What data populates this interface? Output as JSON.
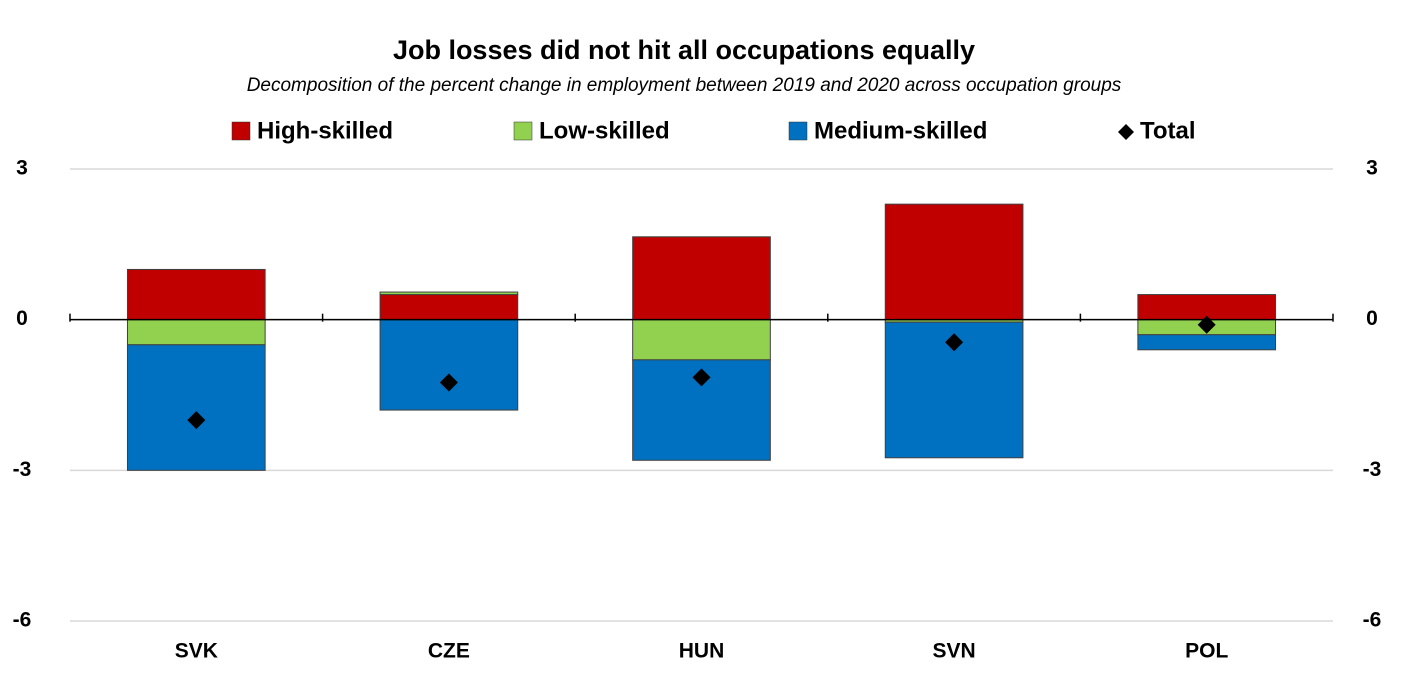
{
  "chart_data": {
    "type": "stacked_bar",
    "title": "Job losses did not hit all occupations equally",
    "subtitle": "Decomposition of the percent change in employment between 2019 and 2020 across occupation groups",
    "categories": [
      "SVK",
      "CZE",
      "HUN",
      "SVN",
      "POL"
    ],
    "series": [
      {
        "name": "High-skilled",
        "color": "#c00000",
        "values": [
          1.0,
          0.5,
          1.65,
          2.3,
          0.5
        ]
      },
      {
        "name": "Low-skilled",
        "color": "#92d050",
        "values": [
          -0.5,
          0.05,
          -0.8,
          -0.05,
          -0.3
        ]
      },
      {
        "name": "Medium-skilled",
        "color": "#0070c0",
        "values": [
          -2.5,
          -1.8,
          -2.0,
          -2.7,
          -0.3
        ]
      }
    ],
    "total": {
      "name": "Total",
      "color": "#000000",
      "values": [
        -2.0,
        -1.25,
        -1.15,
        -0.45,
        -0.1
      ]
    },
    "ylim": [
      -6,
      3
    ],
    "yticks": [
      -6,
      -3,
      0,
      3
    ],
    "y2lim": [
      -6,
      3
    ],
    "y2ticks": [
      -6,
      -3,
      0,
      3
    ],
    "grid": true
  }
}
